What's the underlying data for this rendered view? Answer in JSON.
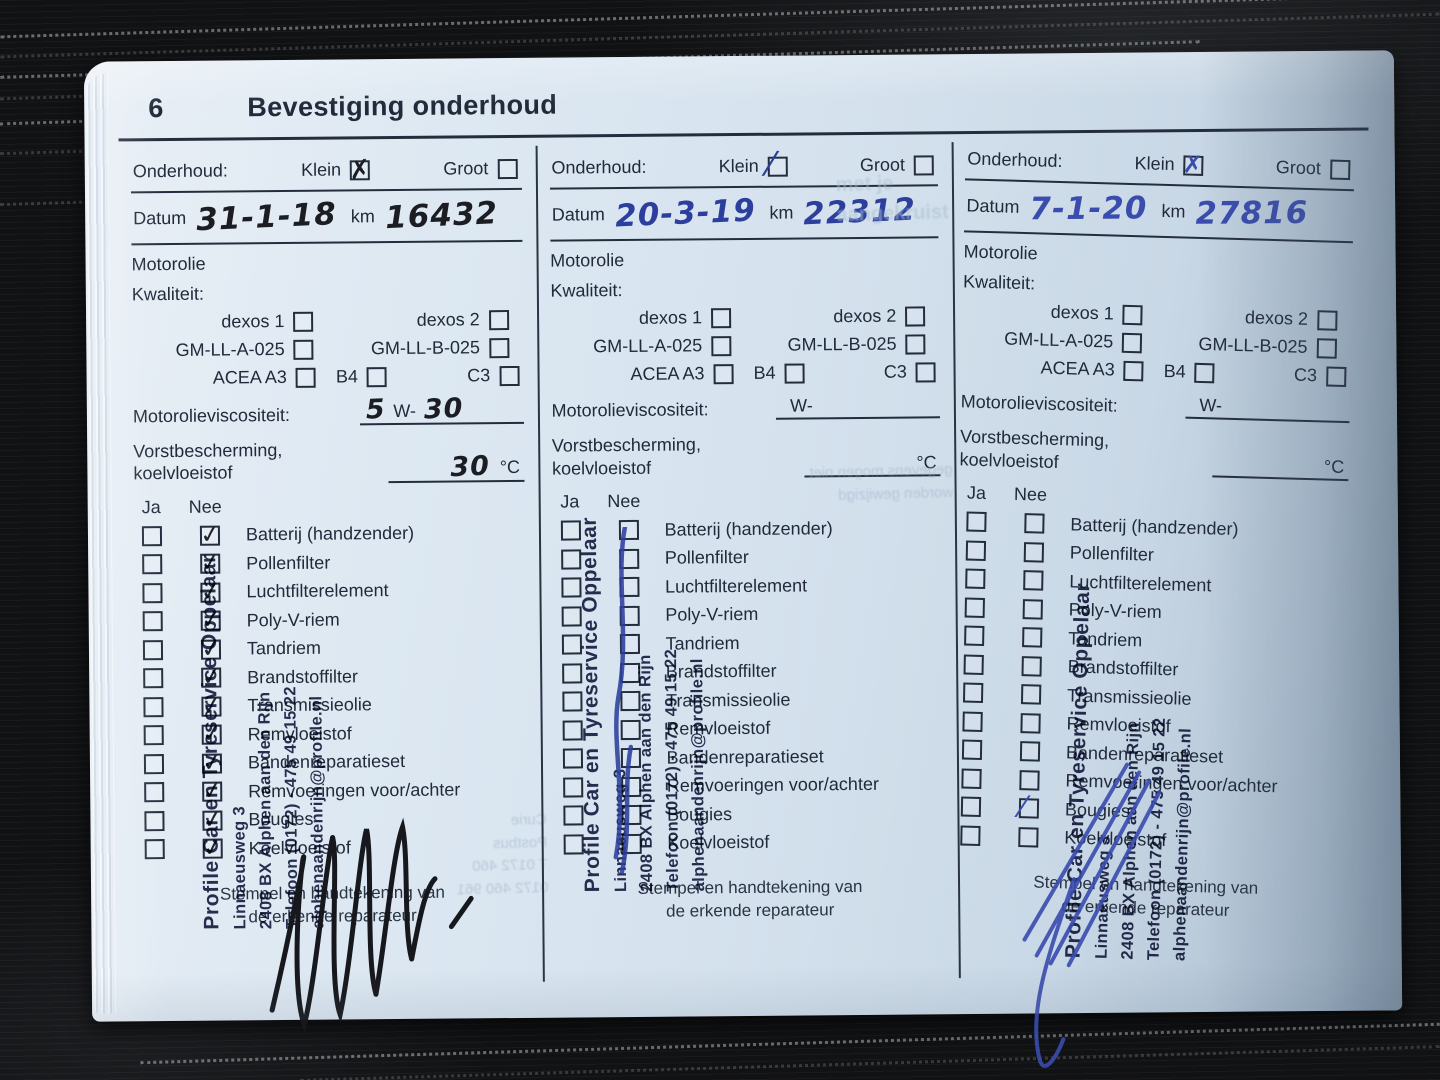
{
  "page": {
    "number": "6",
    "title": "Bevestiging onderhoud"
  },
  "labels": {
    "onderhoud": "Onderhoud:",
    "klein": "Klein",
    "groot": "Groot",
    "datum": "Datum",
    "km": "km",
    "motorolie": "Motorolie",
    "kwaliteit": "Kwaliteit:",
    "dexos1": "dexos 1",
    "dexos2": "dexos 2",
    "gm_a": "GM-LL-A-025",
    "gm_b": "GM-LL-B-025",
    "acea": "ACEA A3",
    "b4": "B4",
    "c3": "C3",
    "viscosity": "Motorolieviscositeit:",
    "w": "W-",
    "frost1": "Vorstbescherming,",
    "frost2": "koelvloeistof",
    "celsius": "°C",
    "ja": "Ja",
    "nee": "Nee"
  },
  "checklist_items": [
    "Batterij (handzender)",
    "Pollenfilter",
    "Luchtfilterelement",
    "Poly-V-riem",
    "Tandriem",
    "Brandstoffilter",
    "Transmissieolie",
    "Remvloeistof",
    "Bandenreparatieset",
    "Remvoeringen voor/achter",
    "Bougies",
    "Koelvloeistof"
  ],
  "footer": {
    "line1": "Stempel en handtekening van",
    "line2": "de erkende reparateur"
  },
  "stamp": {
    "line1": "Profile Car en Tyreservice Oppelaar",
    "line2": "Linnaeusweg 3",
    "line3": "2408 BX Alphen aan den Rijn",
    "line4": "Telefoon (0172) - 475 49 15 22",
    "line5": "alphenaandenrijn@profile.nl"
  },
  "columns": [
    {
      "id": "service-1",
      "datum": "31-1-18",
      "km": "16432",
      "viscosity_first": "5",
      "viscosity_second": "30",
      "frost_temp": "30",
      "nee_checks": "all"
    },
    {
      "id": "service-2",
      "datum": "20-3-19",
      "km": "22312",
      "viscosity_first": "",
      "viscosity_second": "",
      "frost_temp": "",
      "nee_checks": []
    },
    {
      "id": "service-3",
      "datum": "7-1-20",
      "km": "27816",
      "viscosity_first": "",
      "viscosity_second": "",
      "frost_temp": "",
      "nee_checks": [
        10
      ]
    }
  ],
  "bleed": {
    "col1": [
      "Curie",
      "Postbus",
      "T 0172 460",
      "0172 460 961"
    ],
    "col2_top": [
      "met je",
      "aangekruist"
    ],
    "col2_mid": [
      "gegevens mogen niet",
      "worden gewijzigd"
    ]
  },
  "colors": {
    "page_bg": "#d5e2ee",
    "print_text": "#212a3a",
    "stamp_ink": "#1b2145",
    "pen_black": "#1c1d23",
    "pen_blue_2019": "#2c3f9d",
    "pen_blue_2020": "#3a4cae"
  }
}
